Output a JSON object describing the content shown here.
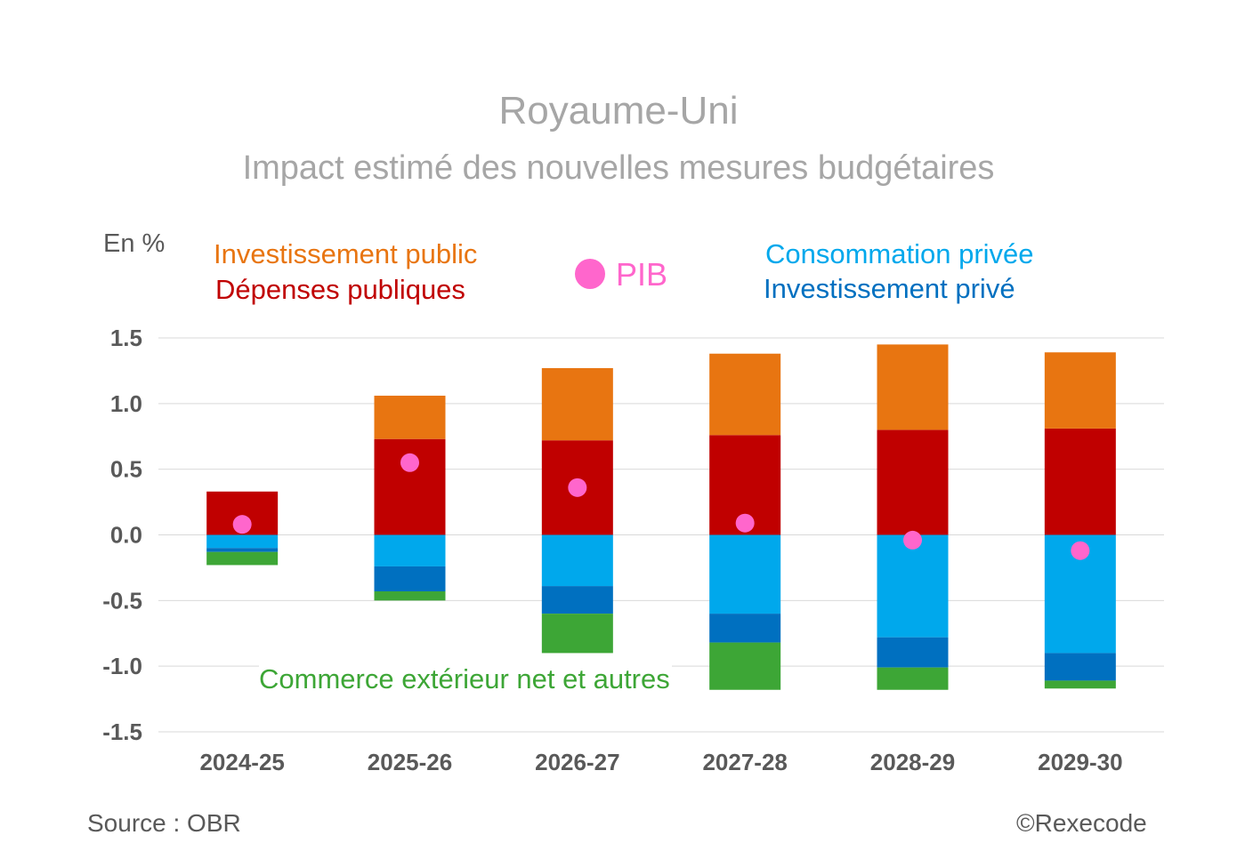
{
  "title": "Royaume-Uni",
  "subtitle": "Impact estimé des nouvelles mesures budgétaires",
  "unit_label": "En %",
  "source": "Source : OBR",
  "copyright": "©Rexecode",
  "colors": {
    "investissement_public": "#e87511",
    "depenses_publiques": "#c00000",
    "consommation_privee": "#00a8ec",
    "investissement_prive": "#0070c0",
    "commerce_exterieur": "#3da636",
    "pib": "#ff66cc",
    "grid": "#d9d9d9",
    "title": "#a6a6a6"
  },
  "chart_data": {
    "type": "bar",
    "stacked": true,
    "title": "Royaume-Uni",
    "subtitle": "Impact estimé des nouvelles mesures budgétaires",
    "ylabel": "En %",
    "ylim": [
      -1.5,
      1.5
    ],
    "yticks": [
      1.5,
      1.0,
      0.5,
      0.0,
      -0.5,
      -1.0,
      -1.5
    ],
    "ytick_labels": [
      "1.5",
      "1.0",
      "0.5",
      "0.0",
      "-0.5",
      "-1.0",
      "-1.5"
    ],
    "grid": true,
    "categories": [
      "2024-25",
      "2025-26",
      "2026-27",
      "2027-28",
      "2028-29",
      "2029-30"
    ],
    "series": [
      {
        "name": "Dépenses publiques",
        "key": "depenses_publiques",
        "values": [
          0.33,
          0.73,
          0.72,
          0.76,
          0.8,
          0.81
        ]
      },
      {
        "name": "Investissement public",
        "key": "investissement_public",
        "values": [
          0.0,
          0.33,
          0.55,
          0.62,
          0.65,
          0.58
        ]
      },
      {
        "name": "Consommation privée",
        "key": "consommation_privee",
        "values": [
          -0.1,
          -0.24,
          -0.39,
          -0.6,
          -0.78,
          -0.9
        ]
      },
      {
        "name": "Investissement privé",
        "key": "investissement_prive",
        "values": [
          -0.03,
          -0.19,
          -0.21,
          -0.22,
          -0.23,
          -0.21
        ]
      },
      {
        "name": "Commerce extérieur net et autres",
        "key": "commerce_exterieur",
        "values": [
          -0.1,
          -0.07,
          -0.3,
          -0.36,
          -0.17,
          -0.06
        ]
      }
    ],
    "pib": {
      "name": "PIB",
      "values": [
        0.08,
        0.55,
        0.36,
        0.09,
        -0.04,
        -0.12
      ]
    },
    "legend": {
      "investissement_public": "Investissement public",
      "depenses_publiques": "Dépenses publiques",
      "pib": "PIB",
      "consommation_privee": "Consommation privée",
      "investissement_prive": "Investissement privé",
      "commerce_exterieur": "Commerce extérieur net et autres"
    }
  }
}
